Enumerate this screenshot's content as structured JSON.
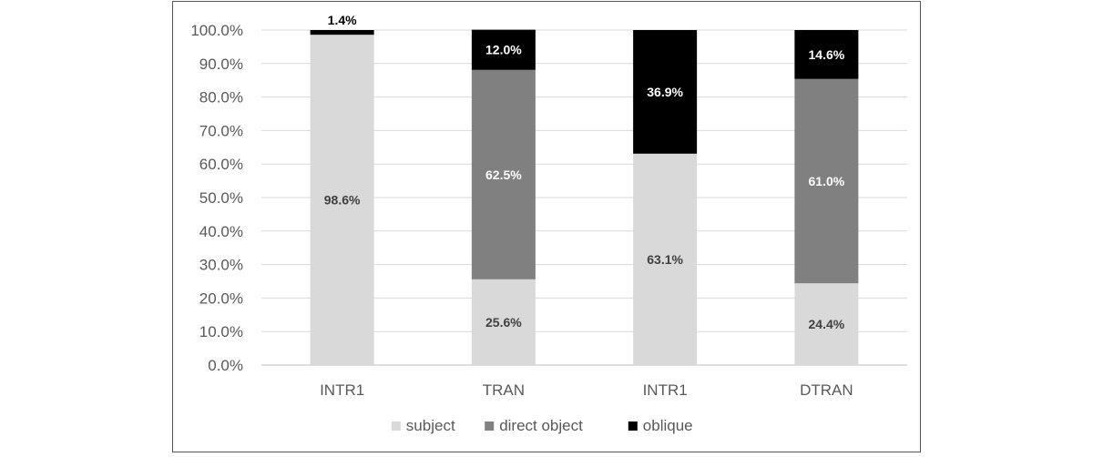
{
  "chart_data": {
    "type": "bar",
    "stacked": true,
    "categories": [
      "INTR1",
      "TRAN",
      "INTR1",
      "DTRAN"
    ],
    "series": [
      {
        "name": "subject",
        "color": "#d9d9d9",
        "label_color": "#404040",
        "values": [
          98.6,
          25.6,
          63.1,
          24.4
        ],
        "labels": [
          "98.6%",
          "25.6%",
          "63.1%",
          "24.4%"
        ]
      },
      {
        "name": "direct object",
        "color": "#808080",
        "label_color": "#ffffff",
        "values": [
          0,
          62.5,
          0,
          61.0
        ],
        "labels": [
          "",
          "62.5%",
          "",
          "61.0%"
        ]
      },
      {
        "name": "oblique",
        "color": "#000000",
        "label_color": "#ffffff",
        "values": [
          1.4,
          12.0,
          36.9,
          14.6
        ],
        "labels": [
          "1.4%",
          "12.0%",
          "36.9%",
          "14.6%"
        ]
      }
    ],
    "ylim": [
      0,
      100
    ],
    "yticks": [
      0,
      10,
      20,
      30,
      40,
      50,
      60,
      70,
      80,
      90,
      100
    ],
    "ytick_labels": [
      "0.0%",
      "10.0%",
      "20.0%",
      "30.0%",
      "40.0%",
      "50.0%",
      "60.0%",
      "70.0%",
      "80.0%",
      "90.0%",
      "100.0%"
    ],
    "grid": true,
    "legend": "bottom"
  }
}
